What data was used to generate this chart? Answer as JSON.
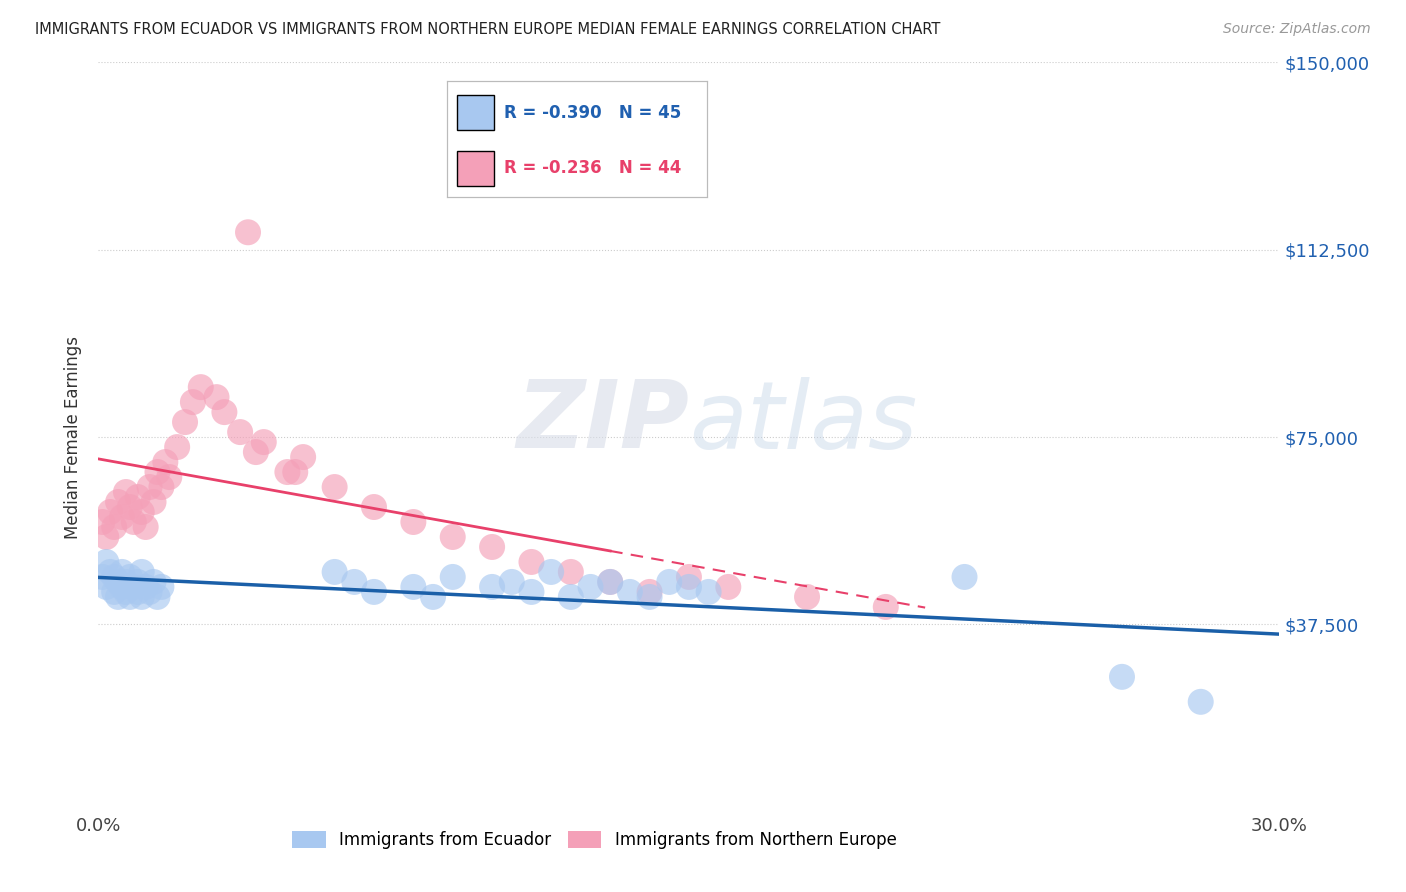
{
  "title": "IMMIGRANTS FROM ECUADOR VS IMMIGRANTS FROM NORTHERN EUROPE MEDIAN FEMALE EARNINGS CORRELATION CHART",
  "source": "Source: ZipAtlas.com",
  "ylabel": "Median Female Earnings",
  "xlim": [
    0.0,
    0.3
  ],
  "ylim": [
    0,
    150000
  ],
  "yticks": [
    0,
    37500,
    75000,
    112500,
    150000
  ],
  "ytick_labels": [
    "",
    "$37,500",
    "$75,000",
    "$112,500",
    "$150,000"
  ],
  "xtick_labels": [
    "0.0%",
    "30.0%"
  ],
  "legend1_R": "-0.390",
  "legend1_N": "45",
  "legend2_R": "-0.236",
  "legend2_N": "44",
  "ecuador_color": "#a8c8f0",
  "northern_europe_color": "#f4a0b8",
  "ecuador_line_color": "#1a5fa8",
  "northern_europe_line_solid_color": "#e8406a",
  "northern_europe_line_dashed_color": "#e8406a",
  "background_color": "#ffffff",
  "ecuador_x": [
    0.001,
    0.002,
    0.002,
    0.003,
    0.004,
    0.004,
    0.005,
    0.005,
    0.006,
    0.006,
    0.007,
    0.007,
    0.008,
    0.008,
    0.009,
    0.01,
    0.01,
    0.011,
    0.011,
    0.012,
    0.013,
    0.014,
    0.015,
    0.016,
    0.06,
    0.065,
    0.07,
    0.08,
    0.085,
    0.09,
    0.1,
    0.105,
    0.11,
    0.115,
    0.12,
    0.125,
    0.13,
    0.135,
    0.14,
    0.145,
    0.15,
    0.155,
    0.22,
    0.26,
    0.28
  ],
  "ecuador_y": [
    47000,
    50000,
    45000,
    48000,
    44000,
    47000,
    46000,
    43000,
    48000,
    45000,
    44000,
    46000,
    43000,
    47000,
    45000,
    44000,
    46000,
    43000,
    48000,
    45000,
    44000,
    46000,
    43000,
    45000,
    48000,
    46000,
    44000,
    45000,
    43000,
    47000,
    45000,
    46000,
    44000,
    48000,
    43000,
    45000,
    46000,
    44000,
    43000,
    46000,
    45000,
    44000,
    47000,
    27000,
    22000
  ],
  "northern_europe_x": [
    0.001,
    0.002,
    0.003,
    0.004,
    0.005,
    0.006,
    0.007,
    0.008,
    0.009,
    0.01,
    0.011,
    0.012,
    0.013,
    0.014,
    0.015,
    0.016,
    0.017,
    0.018,
    0.02,
    0.022,
    0.024,
    0.026,
    0.03,
    0.032,
    0.036,
    0.04,
    0.05,
    0.06,
    0.07,
    0.08,
    0.09,
    0.1,
    0.11,
    0.12,
    0.13,
    0.14,
    0.15,
    0.16,
    0.18,
    0.2,
    0.038,
    0.042,
    0.048,
    0.052
  ],
  "northern_europe_y": [
    58000,
    55000,
    60000,
    57000,
    62000,
    59000,
    64000,
    61000,
    58000,
    63000,
    60000,
    57000,
    65000,
    62000,
    68000,
    65000,
    70000,
    67000,
    73000,
    78000,
    82000,
    85000,
    83000,
    80000,
    76000,
    72000,
    68000,
    65000,
    61000,
    58000,
    55000,
    53000,
    50000,
    48000,
    46000,
    44000,
    47000,
    45000,
    43000,
    41000,
    116000,
    74000,
    68000,
    71000
  ],
  "ne_solid_xlim": 0.13,
  "ne_line_start_x": 0.001,
  "ne_line_end_x": 0.21
}
